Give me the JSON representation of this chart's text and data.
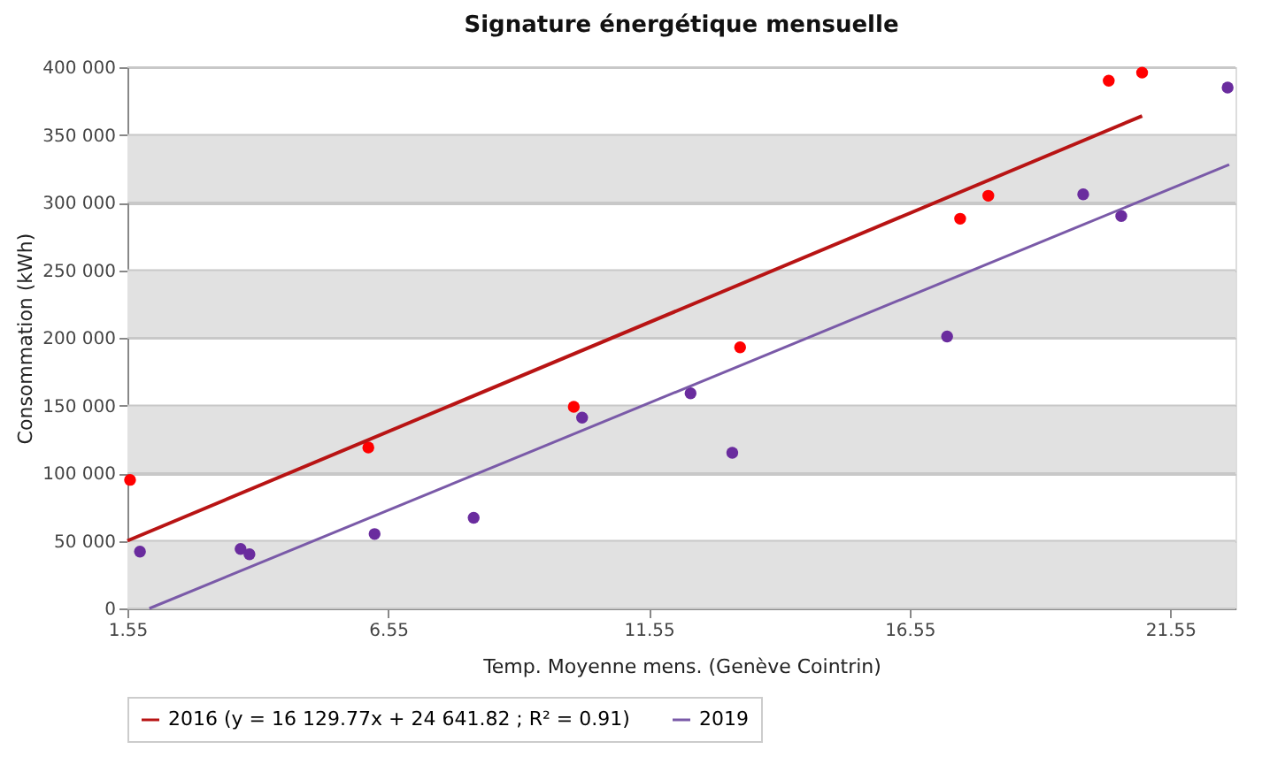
{
  "chart_data": {
    "type": "scatter",
    "title": "Signature énergétique mensuelle",
    "xlabel": "Temp. Moyenne mens. (Genève Cointrin)",
    "ylabel": "Consommation (kWh)",
    "xlim": [
      1.55,
      22.8
    ],
    "xticks": [
      1.55,
      6.55,
      11.55,
      16.55,
      21.55
    ],
    "ylim": [
      0,
      400000
    ],
    "yticks": [
      0,
      {
        "value": 50000,
        "label": "50 000"
      },
      {
        "value": 100000,
        "label": "100 000"
      },
      {
        "value": 150000,
        "label": "150 000"
      },
      {
        "value": 200000,
        "label": "200 000"
      },
      {
        "value": 250000,
        "label": "250 000"
      },
      {
        "value": 300000,
        "label": "300 000"
      },
      {
        "value": 350000,
        "label": "350 000"
      },
      {
        "value": 400000,
        "label": "400 000"
      }
    ],
    "grid": "y",
    "legend": "bottom",
    "bands": [
      {
        "axis": "y",
        "from": 0,
        "to": 50000,
        "color": "#e1e1e1"
      },
      {
        "axis": "y",
        "from": 100000,
        "to": 150000,
        "color": "#e1e1e1"
      },
      {
        "axis": "y",
        "from": 200000,
        "to": 250000,
        "color": "#e1e1e1"
      },
      {
        "axis": "y",
        "from": 300000,
        "to": 350000,
        "color": "#e1e1e1"
      }
    ],
    "series": [
      {
        "marker": "circle",
        "color": "#ff0000",
        "x": [
          1.6,
          6.17,
          10.11,
          13.3,
          17.52,
          18.06,
          20.37,
          21.01
        ],
        "values": [
          95000,
          119000,
          149000,
          193000,
          288000,
          305000,
          390000,
          396000
        ]
      },
      {
        "marker": "circle",
        "color": "#6a2c9e",
        "x": [
          1.79,
          3.72,
          3.89,
          6.29,
          8.19,
          10.27,
          12.35,
          13.15,
          17.27,
          19.88,
          20.61,
          22.65
        ],
        "values": [
          42000,
          44000,
          40000,
          55000,
          67000,
          141000,
          159000,
          115000,
          201000,
          306000,
          290000,
          385000
        ]
      },
      {
        "type": "line",
        "name": "2016   (y = 16 129.77x + 24 641.82 ; R² = 0.91)",
        "color": "#b81414",
        "x": [
          1.55,
          21.01
        ],
        "values": [
          50000,
          364000
        ]
      },
      {
        "type": "line",
        "name": "2019",
        "color": "#7a5aa8",
        "x": [
          1.97,
          22.68
        ],
        "values": [
          0,
          328000
        ]
      }
    ]
  }
}
